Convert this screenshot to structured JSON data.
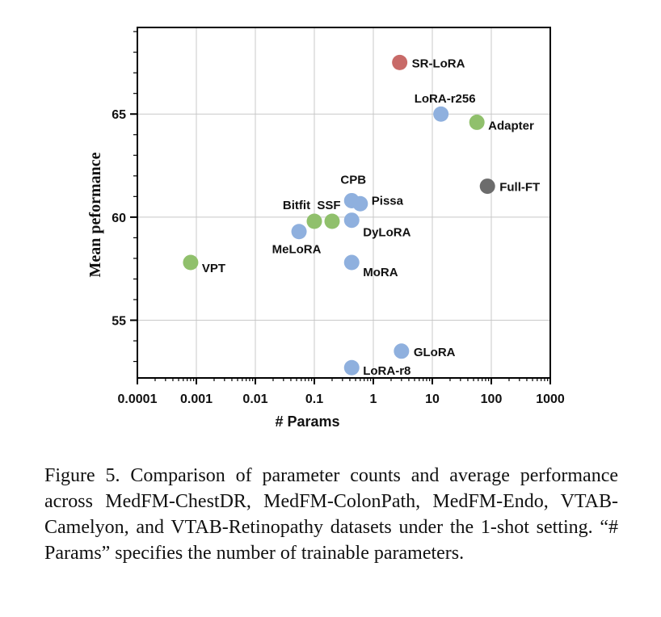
{
  "chart_data": {
    "type": "scatter",
    "title": "",
    "xlabel": "# Params",
    "ylabel": "Mean peformance",
    "xscale": "log",
    "xlim": [
      0.0001,
      1000
    ],
    "ylim": [
      52.2,
      69.2
    ],
    "grid": true,
    "x_ticks": [
      {
        "value": 0.0001,
        "label": "0.0001"
      },
      {
        "value": 0.001,
        "label": "0.001"
      },
      {
        "value": 0.01,
        "label": "0.01"
      },
      {
        "value": 0.1,
        "label": "0.1"
      },
      {
        "value": 1,
        "label": "1"
      },
      {
        "value": 10,
        "label": "10"
      },
      {
        "value": 100,
        "label": "100"
      },
      {
        "value": 1000,
        "label": "1000"
      }
    ],
    "y_ticks": [
      {
        "value": 55,
        "label": "55"
      },
      {
        "value": 60,
        "label": "60"
      },
      {
        "value": 65,
        "label": "65"
      }
    ],
    "colors": {
      "blue": "#8fb0de",
      "green": "#90c06c",
      "red": "#c86a68",
      "gray": "#6c6c6c"
    },
    "points": [
      {
        "label": "SR-LoRA",
        "x": 2.8,
        "y": 67.5,
        "color": "red",
        "label_pos": "right"
      },
      {
        "label": "LoRA-r256",
        "x": 14,
        "y": 65.0,
        "color": "blue",
        "label_pos": "above"
      },
      {
        "label": "Adapter",
        "x": 57,
        "y": 64.6,
        "color": "green",
        "label_pos": "right"
      },
      {
        "label": "Full-FT",
        "x": 86,
        "y": 61.5,
        "color": "gray",
        "label_pos": "right"
      },
      {
        "label": "CPB",
        "x": 0.43,
        "y": 60.8,
        "color": "blue",
        "label_pos": "above"
      },
      {
        "label": "Pissa",
        "x": 0.6,
        "y": 60.65,
        "color": "blue",
        "label_pos": "right"
      },
      {
        "label": "DyLoRA",
        "x": 0.43,
        "y": 59.85,
        "color": "blue",
        "label_pos": "right"
      },
      {
        "label": "Bitfit",
        "x": 0.1,
        "y": 59.8,
        "color": "green",
        "label_pos": "above"
      },
      {
        "label": "SSF",
        "x": 0.2,
        "y": 59.8,
        "color": "green",
        "label_pos": "above"
      },
      {
        "label": "MeLoRA",
        "x": 0.055,
        "y": 59.3,
        "color": "blue",
        "label_pos": "below"
      },
      {
        "label": "VPT",
        "x": 0.0008,
        "y": 57.8,
        "color": "green",
        "label_pos": "right"
      },
      {
        "label": "MoRA",
        "x": 0.43,
        "y": 57.8,
        "color": "blue",
        "label_pos": "right"
      },
      {
        "label": "GLoRA",
        "x": 3.0,
        "y": 53.5,
        "color": "blue",
        "label_pos": "right"
      },
      {
        "label": "LoRA-r8",
        "x": 0.43,
        "y": 52.7,
        "color": "blue",
        "label_pos": "right"
      }
    ]
  },
  "caption": "Figure 5.  Comparison of parameter counts and average performance across MedFM-ChestDR, MedFM-ColonPath, MedFM-Endo, VTAB-Camelyon, and VTAB-Retinopathy datasets under the 1-shot setting. “# Params” specifies the number of trainable parameters."
}
